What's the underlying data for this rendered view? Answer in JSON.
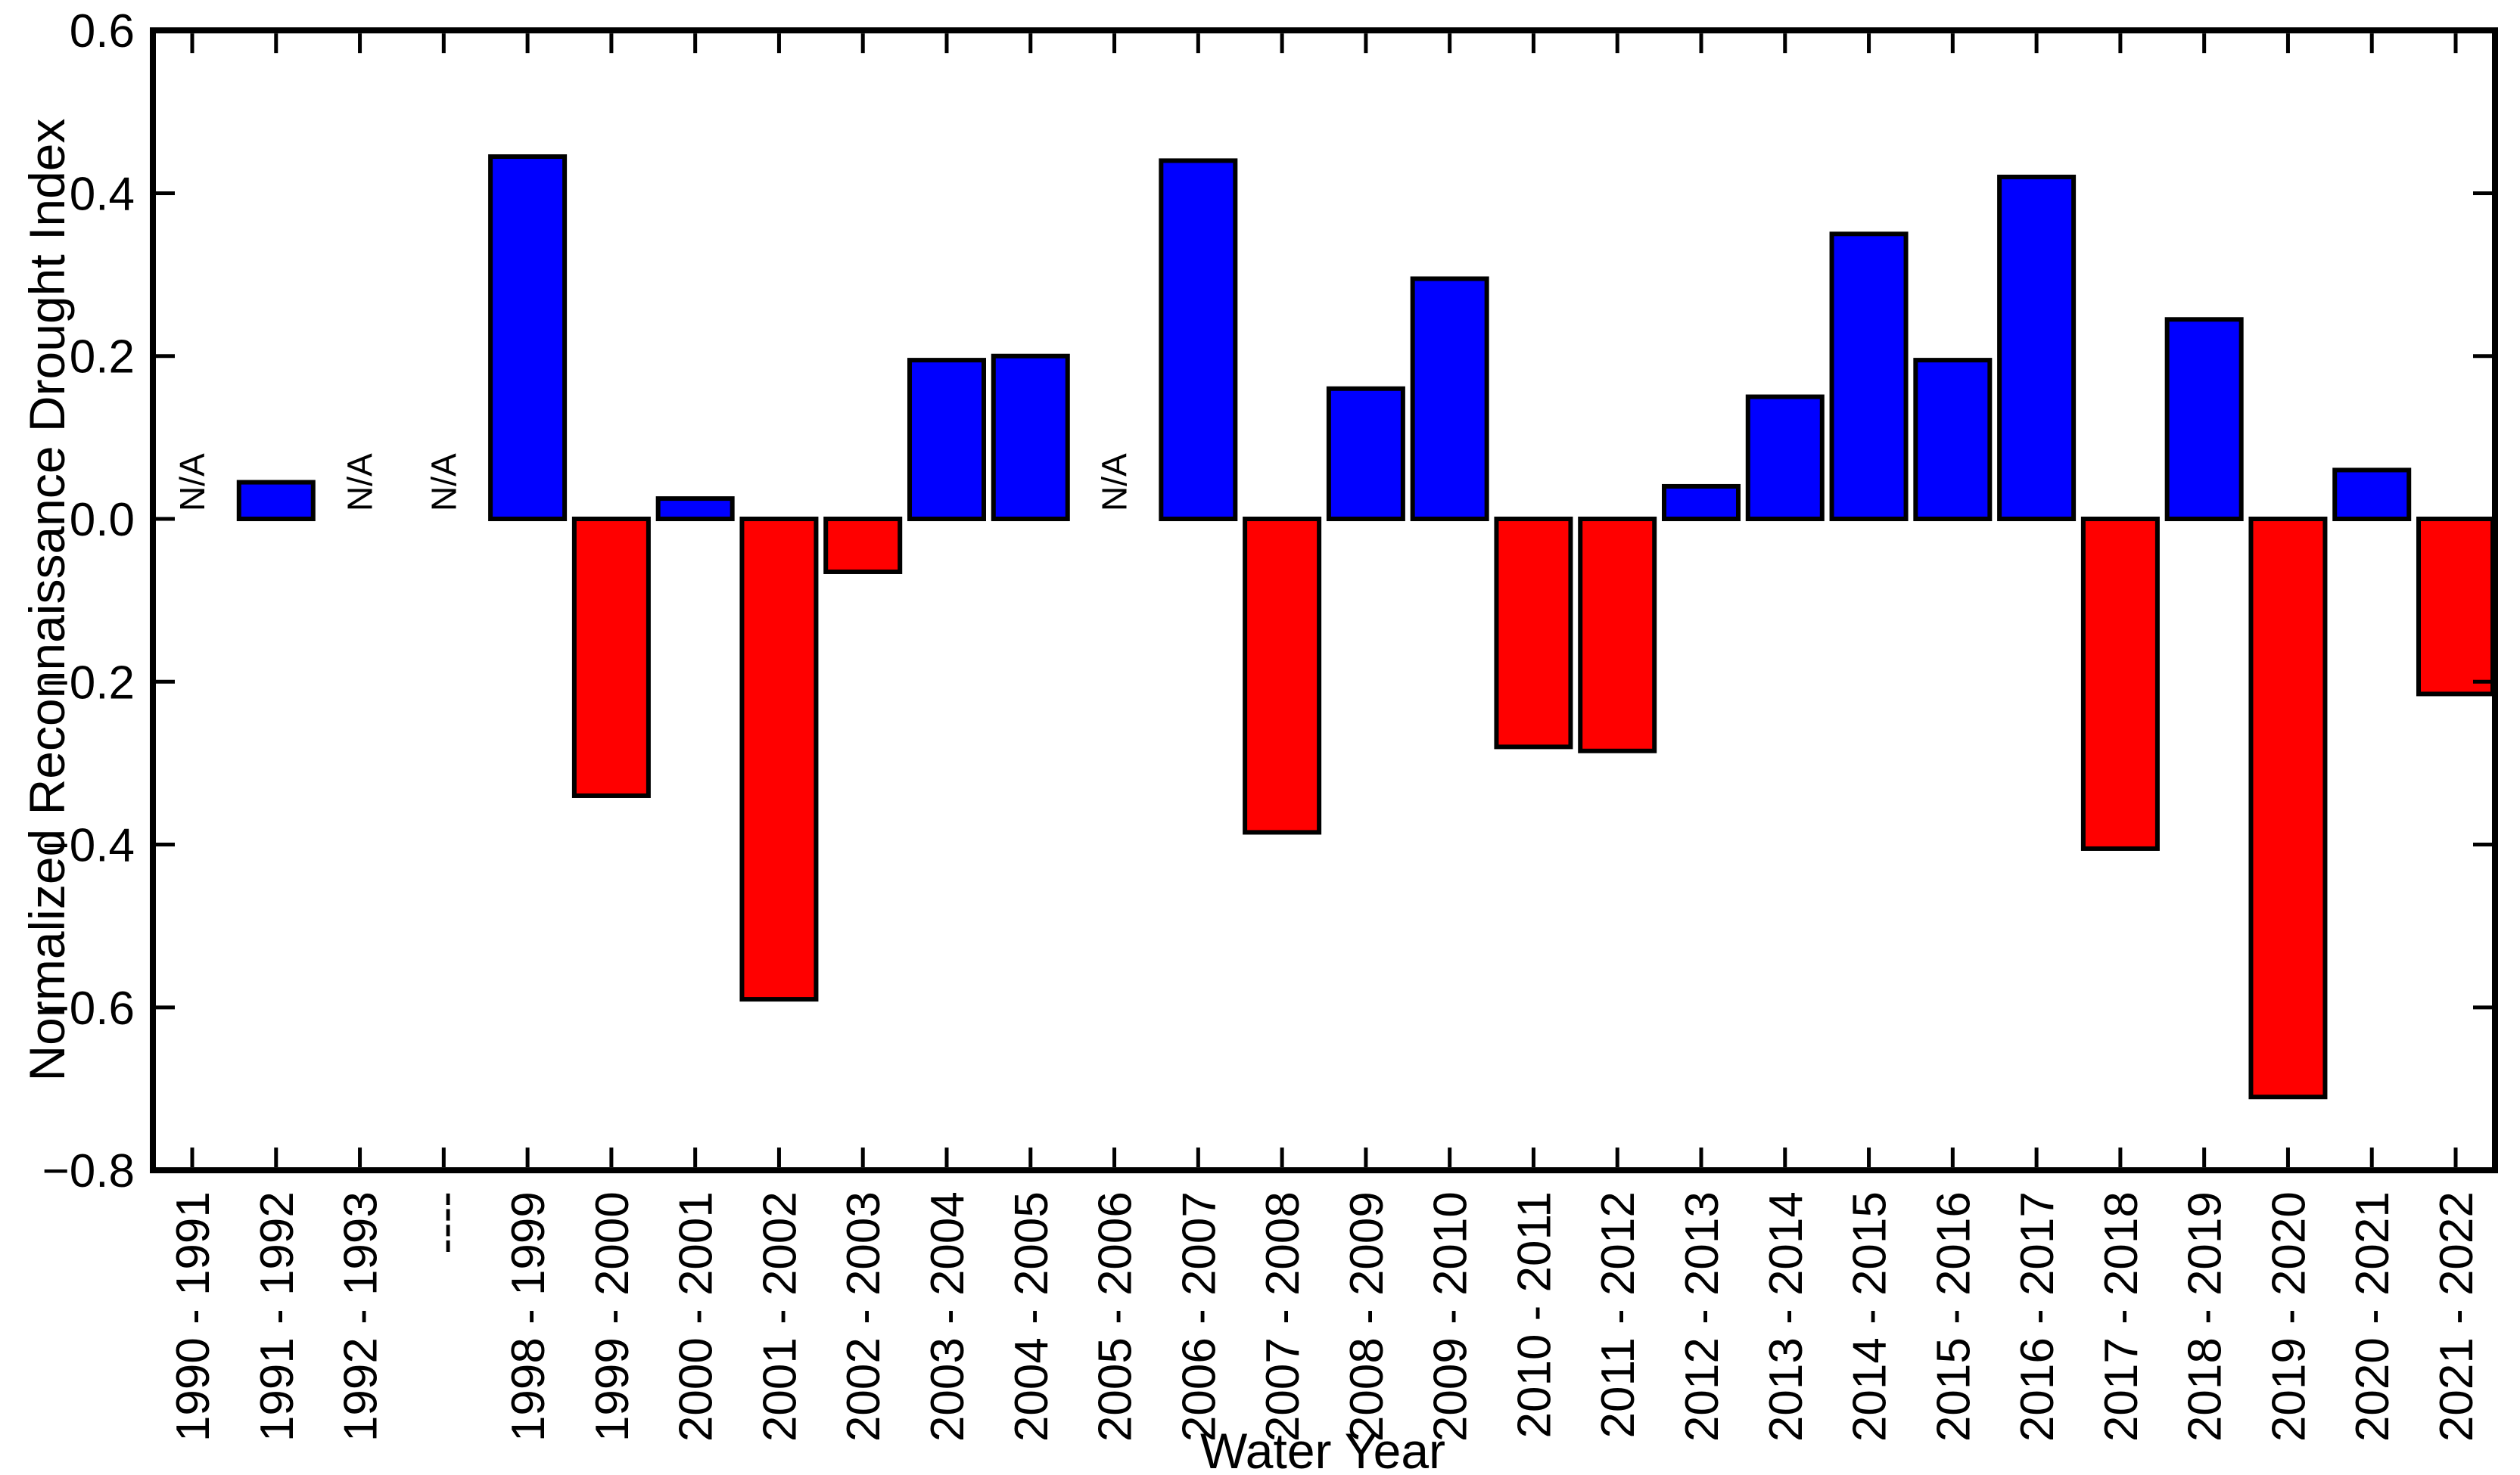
{
  "chart_data": {
    "type": "bar",
    "title": "",
    "xlabel": "Water Year",
    "ylabel": "Normalized Reconnaissance Drought Index",
    "ylim": [
      -0.8,
      0.6
    ],
    "ytick_step": 0.2,
    "grid": false,
    "legend": "none",
    "na_label": "N/A",
    "categories": [
      "1990 - 1991",
      "1991 - 1992",
      "1992 - 1993",
      "----",
      "1998 - 1999",
      "1999 - 2000",
      "2000 - 2001",
      "2001 - 2002",
      "2002 - 2003",
      "2003 - 2004",
      "2004 - 2005",
      "2005 - 2006",
      "2006 - 2007",
      "2007 - 2008",
      "2008 - 2009",
      "2009 - 2010",
      "2010 - 2011",
      "2011 - 2012",
      "2012 - 2013",
      "2013 - 2014",
      "2014 - 2015",
      "2015 - 2016",
      "2016 - 2017",
      "2017 - 2018",
      "2018 - 2019",
      "2019 - 2020",
      "2020 - 2021",
      "2021 - 2022"
    ],
    "values": [
      null,
      0.045,
      null,
      null,
      0.445,
      -0.34,
      0.025,
      -0.59,
      -0.065,
      0.195,
      0.2,
      null,
      0.44,
      -0.385,
      0.16,
      0.295,
      -0.28,
      -0.285,
      0.04,
      0.15,
      0.35,
      0.195,
      0.42,
      -0.405,
      0.245,
      -0.71,
      0.06,
      -0.215
    ],
    "colors": {
      "positive_bar": "#0000ff",
      "negative_bar": "#ff0000",
      "bar_edge": "#000000",
      "axis": "#000000",
      "text": "#000000",
      "background": "#ffffff"
    }
  }
}
